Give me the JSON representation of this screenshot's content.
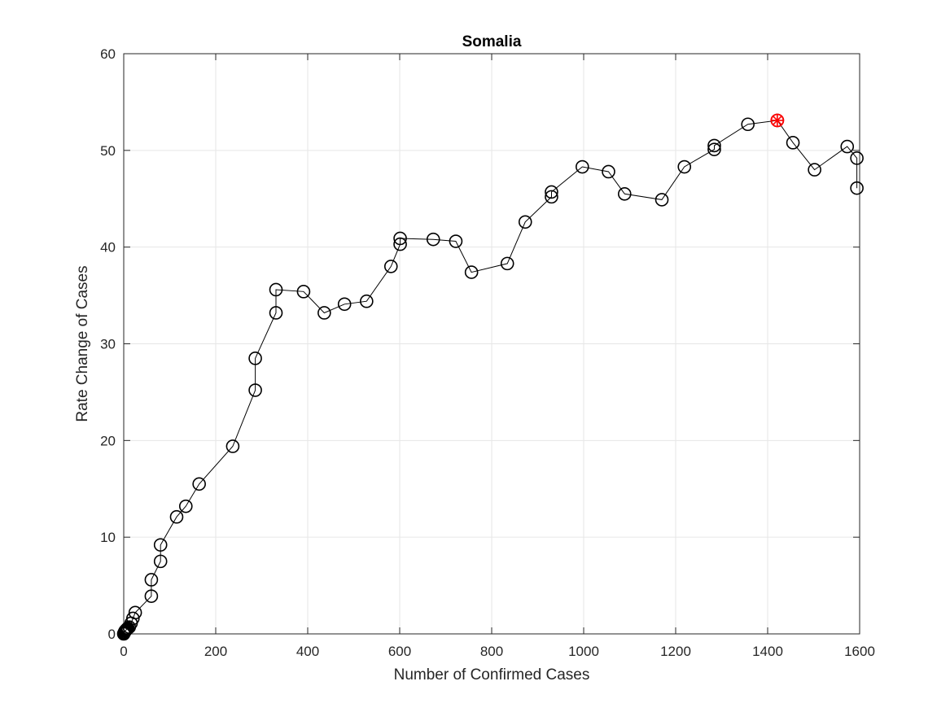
{
  "chart_data": {
    "type": "line",
    "title": "Somalia",
    "xlabel": "Number of Confirmed Cases",
    "ylabel": "Rate Change of Cases",
    "xlim": [
      0,
      1600
    ],
    "ylim": [
      0,
      60
    ],
    "xticks": [
      0,
      200,
      400,
      600,
      800,
      1000,
      1200,
      1400,
      1600
    ],
    "yticks": [
      0,
      10,
      20,
      30,
      40,
      50,
      60
    ],
    "grid": true,
    "line_color": "#000000",
    "marker": "circle",
    "highlight_color": "#ff0000",
    "series": [
      {
        "x": [
          0,
          1,
          2,
          3,
          4,
          5,
          6,
          7,
          8,
          9,
          12,
          16,
          20,
          25,
          60,
          60,
          80,
          80,
          115,
          135,
          164,
          237,
          286,
          286,
          331,
          331,
          391,
          436,
          480,
          528,
          581,
          601,
          601,
          673,
          722,
          756,
          834,
          873,
          930,
          930,
          997,
          1054,
          1089,
          1170,
          1219,
          1284,
          1284,
          1357,
          1421,
          1455,
          1502,
          1573,
          1594,
          1594
        ],
        "y": [
          0,
          0.1,
          0.2,
          0.3,
          0.35,
          0.4,
          0.45,
          0.5,
          0.55,
          0.6,
          0.7,
          1.1,
          1.6,
          2.2,
          3.9,
          5.6,
          7.5,
          9.2,
          12.1,
          13.2,
          15.5,
          19.4,
          25.2,
          28.5,
          33.2,
          35.6,
          35.4,
          33.2,
          34.1,
          34.4,
          38.0,
          40.3,
          40.9,
          40.8,
          40.6,
          37.4,
          38.3,
          42.6,
          45.2,
          45.7,
          48.3,
          47.8,
          45.5,
          44.9,
          48.3,
          50.1,
          50.5,
          52.7,
          53.1,
          50.8,
          48.0,
          50.4,
          49.2,
          46.1
        ]
      }
    ],
    "highlight_point": {
      "x": 1421,
      "y": 53.1
    }
  }
}
